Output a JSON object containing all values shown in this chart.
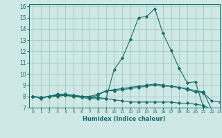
{
  "xlabel": "Humidex (Indice chaleur)",
  "ylabel": "",
  "background_color": "#cde8e5",
  "grid_color": "#aaccca",
  "line_color": "#1a6b6b",
  "xlim": [
    -0.5,
    23
  ],
  "ylim": [
    7,
    16.2
  ],
  "xticks": [
    0,
    1,
    2,
    3,
    4,
    5,
    6,
    7,
    8,
    9,
    10,
    11,
    12,
    13,
    14,
    15,
    16,
    17,
    18,
    19,
    20,
    21,
    22,
    23
  ],
  "yticks": [
    7,
    8,
    9,
    10,
    11,
    12,
    13,
    14,
    15,
    16
  ],
  "series": [
    {
      "x": [
        0,
        1,
        2,
        3,
        4,
        5,
        6,
        7,
        8,
        9,
        10,
        11,
        12,
        13,
        14,
        15,
        16,
        17,
        18,
        19,
        20,
        21,
        22,
        23
      ],
      "y": [
        8.0,
        7.8,
        8.0,
        8.0,
        8.1,
        8.0,
        7.9,
        7.8,
        7.8,
        7.8,
        10.4,
        11.4,
        13.1,
        15.0,
        15.1,
        15.8,
        13.6,
        12.1,
        10.5,
        9.2,
        9.3,
        7.0,
        6.7,
        6.6
      ]
    },
    {
      "x": [
        0,
        1,
        2,
        3,
        4,
        5,
        6,
        7,
        8,
        9,
        10,
        11,
        12,
        13,
        14,
        15,
        16,
        17,
        18,
        19,
        20,
        21,
        22,
        23
      ],
      "y": [
        8.0,
        7.9,
        8.0,
        8.1,
        8.1,
        8.0,
        8.0,
        7.9,
        8.1,
        8.5,
        8.6,
        8.7,
        8.8,
        8.9,
        9.0,
        9.1,
        9.0,
        8.9,
        8.8,
        8.7,
        8.5,
        8.4,
        6.8,
        6.6
      ]
    },
    {
      "x": [
        0,
        1,
        2,
        3,
        4,
        5,
        6,
        7,
        8,
        9,
        10,
        11,
        12,
        13,
        14,
        15,
        16,
        17,
        18,
        19,
        20,
        21,
        22,
        23
      ],
      "y": [
        8.0,
        7.9,
        8.0,
        8.2,
        8.2,
        8.1,
        8.0,
        8.0,
        8.2,
        8.5,
        8.5,
        8.6,
        8.7,
        8.8,
        8.9,
        9.0,
        8.9,
        8.9,
        8.8,
        8.6,
        8.4,
        8.3,
        7.6,
        7.5
      ]
    },
    {
      "x": [
        0,
        1,
        2,
        3,
        4,
        5,
        6,
        7,
        8,
        9,
        10,
        11,
        12,
        13,
        14,
        15,
        16,
        17,
        18,
        19,
        20,
        21,
        22,
        23
      ],
      "y": [
        8.0,
        7.9,
        8.0,
        8.1,
        8.1,
        8.1,
        8.0,
        7.9,
        7.9,
        7.8,
        7.7,
        7.6,
        7.5,
        7.5,
        7.5,
        7.5,
        7.5,
        7.5,
        7.4,
        7.4,
        7.3,
        7.2,
        6.8,
        6.6
      ]
    }
  ]
}
